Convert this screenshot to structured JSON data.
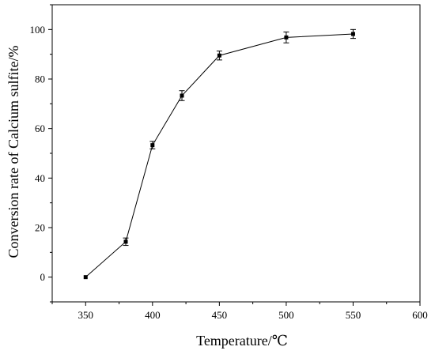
{
  "chart_data": {
    "type": "line",
    "title": "",
    "xlabel": "Temperature/℃",
    "ylabel": "Conversion rate of Calcium sulfite/%",
    "xlim": [
      325,
      600
    ],
    "ylim": [
      -10,
      110
    ],
    "xticks": [
      350,
      400,
      450,
      500,
      550,
      600
    ],
    "yticks": [
      0,
      20,
      40,
      60,
      80,
      100
    ],
    "grid": false,
    "legend": "none",
    "line_color": "#000000",
    "series": [
      {
        "marker": "square",
        "x": [
          350,
          380,
          400,
          422,
          450,
          500,
          550
        ],
        "y": [
          0,
          14.3,
          53.3,
          73.3,
          89.5,
          96.8,
          98.2
        ],
        "error": [
          0,
          1.5,
          1.5,
          2.0,
          1.8,
          2.2,
          1.8
        ]
      }
    ]
  }
}
